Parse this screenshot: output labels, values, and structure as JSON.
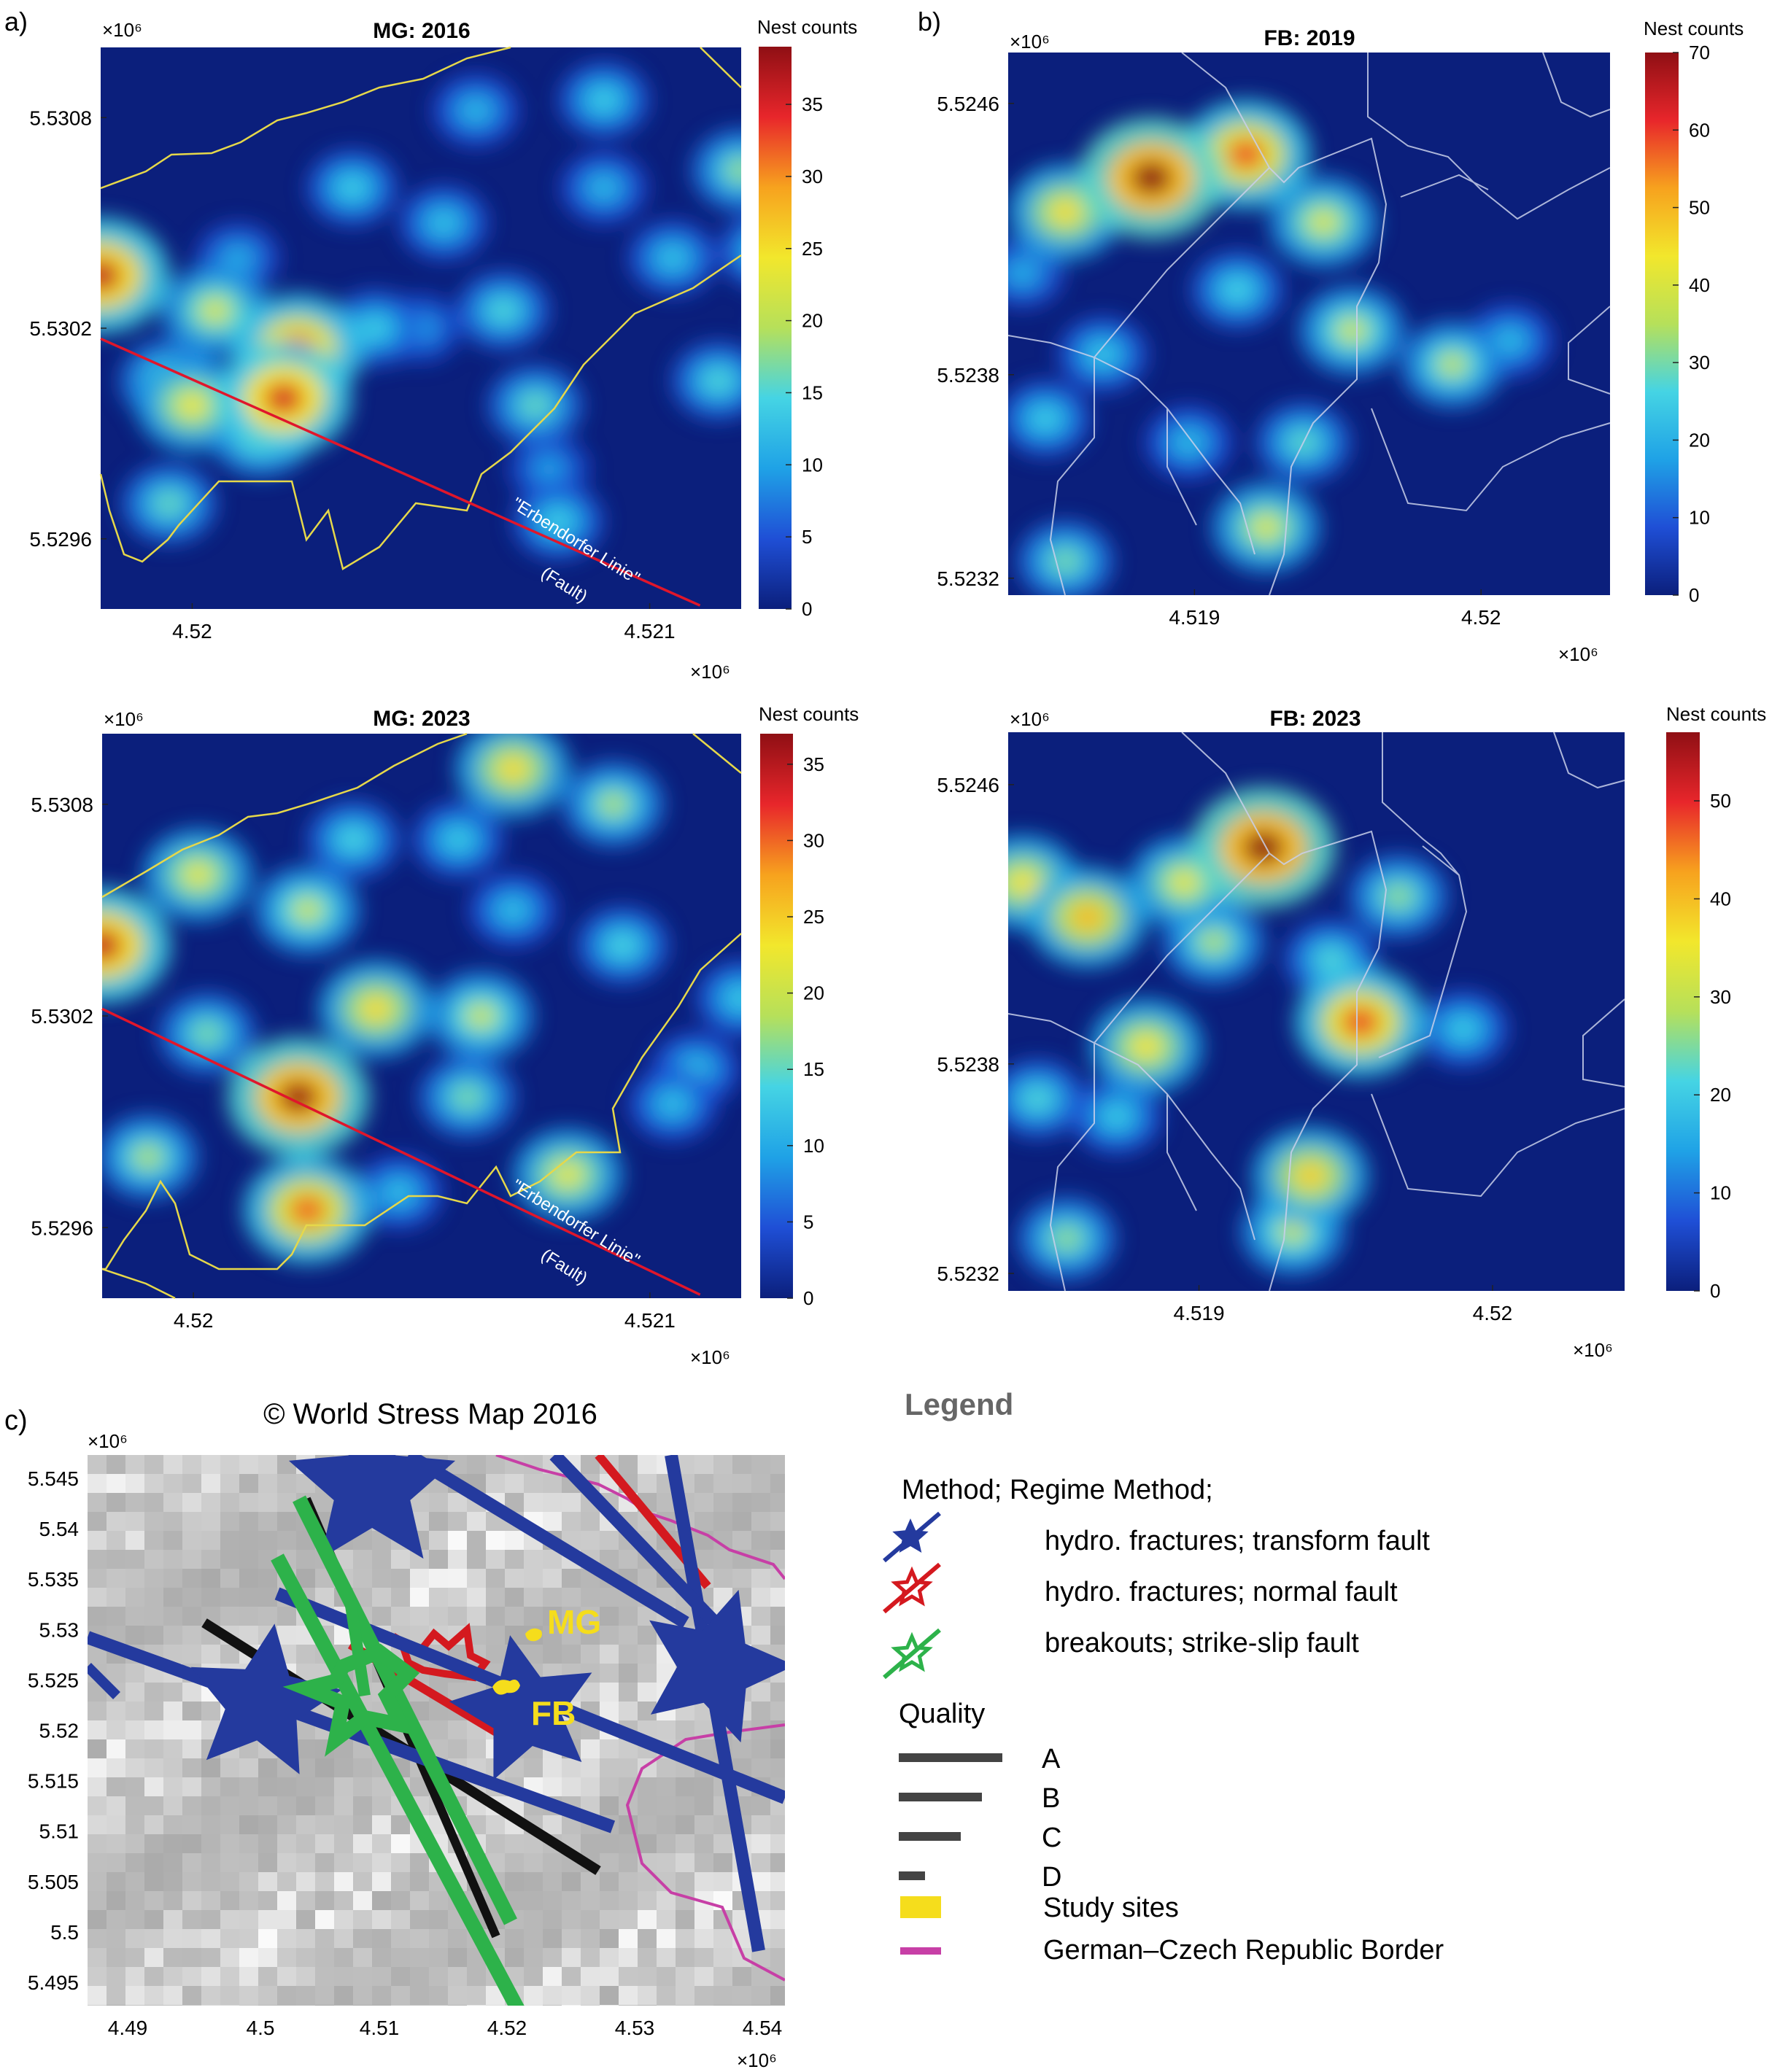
{
  "panel_labels": {
    "a": "a)",
    "b": "b)",
    "c": "c)"
  },
  "colormap": [
    "#0b1f7c",
    "#1f4fd6",
    "#1fa2e6",
    "#45d4e4",
    "#b6e05a",
    "#f2e72c",
    "#f7a21e",
    "#e8262b",
    "#8f0f14"
  ],
  "colors": {
    "boundary_mg": "#e6d84a",
    "boundary_fb": "#c9d0ea",
    "fault": "#e0162b",
    "blue": "#243a9e",
    "red": "#d4191f",
    "green": "#2db24a",
    "yellow": "#f5dd1c",
    "border": "#c73fa6"
  },
  "chart_data": [
    {
      "id": "mg2016",
      "type": "heatmap",
      "title": "MG: 2016",
      "colorbar_label": "Nest counts",
      "cbar_ticks": [
        0,
        5,
        10,
        15,
        20,
        25,
        30,
        35
      ],
      "cbar_max": 39,
      "x_range": [
        4.5198,
        4.5212
      ],
      "y_range": [
        5.5294,
        5.531
      ],
      "x_ticks": [
        {
          "v": 4.52,
          "l": "4.52"
        },
        {
          "v": 4.521,
          "l": "4.521"
        }
      ],
      "y_ticks": [
        {
          "v": 5.5308,
          "l": "5.5308"
        },
        {
          "v": 5.5302,
          "l": "5.5302"
        },
        {
          "v": 5.5296,
          "l": "5.5296"
        }
      ],
      "x_exponent": "×10⁶",
      "y_exponent": "×10⁶",
      "fault_line": [
        [
          4.5198,
          5.53017
        ],
        [
          4.52111,
          5.52941
        ]
      ],
      "fault_label_1": "\"Erbendorfer Linie\"",
      "fault_label_2": "(Fault)",
      "hotspots": [
        [
          4.5198,
          5.53035,
          36
        ],
        [
          4.52023,
          5.53014,
          33
        ],
        [
          4.5202,
          5.53,
          35
        ],
        [
          4.52,
          5.52998,
          24
        ],
        [
          4.52005,
          5.53025,
          22
        ],
        [
          4.51995,
          5.53005,
          18
        ],
        [
          4.51995,
          5.5297,
          16
        ],
        [
          4.52015,
          5.5299,
          20
        ],
        [
          4.52035,
          5.5306,
          14
        ],
        [
          4.5204,
          5.5302,
          14
        ],
        [
          4.52068,
          5.53025,
          15
        ],
        [
          4.52055,
          5.5305,
          13
        ],
        [
          4.5209,
          5.5306,
          12
        ],
        [
          4.5209,
          5.53085,
          14
        ],
        [
          4.5212,
          5.53065,
          18
        ],
        [
          4.52125,
          5.53042,
          14
        ],
        [
          4.52105,
          5.5304,
          13
        ],
        [
          4.52133,
          5.5302,
          13
        ],
        [
          4.52115,
          5.53005,
          15
        ],
        [
          4.52075,
          5.52998,
          16
        ],
        [
          4.52078,
          5.5298,
          10
        ],
        [
          4.5208,
          5.52965,
          14
        ],
        [
          4.5205,
          5.5302,
          10
        ],
        [
          4.52062,
          5.53082,
          12
        ],
        [
          4.5201,
          5.5304,
          11
        ]
      ]
    },
    {
      "id": "mg2023",
      "type": "heatmap",
      "title": "MG: 2023",
      "colorbar_label": "Nest counts",
      "cbar_ticks": [
        0,
        5,
        10,
        15,
        20,
        25,
        30,
        35
      ],
      "cbar_max": 37,
      "x_range": [
        4.5198,
        4.5212
      ],
      "y_range": [
        5.5294,
        5.531
      ],
      "x_ticks": [
        {
          "v": 4.52,
          "l": "4.52"
        },
        {
          "v": 4.521,
          "l": "4.521"
        }
      ],
      "y_ticks": [
        {
          "v": 5.5308,
          "l": "5.5308"
        },
        {
          "v": 5.5302,
          "l": "5.5302"
        },
        {
          "v": 5.5296,
          "l": "5.5296"
        }
      ],
      "x_exponent": "×10⁶",
      "y_exponent": "×10⁶",
      "fault_line": [
        [
          4.5198,
          5.53022
        ],
        [
          4.52111,
          5.52941
        ]
      ],
      "fault_label_1": "\"Erbendorfer Linie\"",
      "fault_label_2": "(Fault)",
      "hotspots": [
        [
          4.5198,
          5.5304,
          34
        ],
        [
          4.52023,
          5.52997,
          36
        ],
        [
          4.52001,
          5.5306,
          22
        ],
        [
          4.52025,
          5.5305,
          20
        ],
        [
          4.5207,
          5.5309,
          24
        ],
        [
          4.52092,
          5.5308,
          18
        ],
        [
          4.5204,
          5.53022,
          24
        ],
        [
          4.52063,
          5.5302,
          20
        ],
        [
          4.5206,
          5.52997,
          16
        ],
        [
          4.52025,
          5.52965,
          30
        ],
        [
          4.5199,
          5.5298,
          18
        ],
        [
          4.52003,
          5.53015,
          16
        ],
        [
          4.52082,
          5.52975,
          22
        ],
        [
          4.52094,
          5.5304,
          14
        ],
        [
          4.52035,
          5.5307,
          14
        ],
        [
          4.52058,
          5.5307,
          13
        ],
        [
          4.5212,
          5.53025,
          13
        ],
        [
          4.5211,
          5.53005,
          12
        ],
        [
          4.5207,
          5.5305,
          12
        ],
        [
          4.52105,
          5.52995,
          12
        ],
        [
          4.52045,
          5.5297,
          12
        ]
      ]
    },
    {
      "id": "fb2019",
      "type": "heatmap",
      "title": "FB: 2019",
      "colorbar_label": "Nest counts",
      "cbar_ticks": [
        0,
        10,
        20,
        30,
        40,
        50,
        60,
        70
      ],
      "cbar_max": 70,
      "x_range": [
        4.51835,
        4.52045
      ],
      "y_range": [
        5.52315,
        5.52475
      ],
      "x_ticks": [
        {
          "v": 4.519,
          "l": "4.519"
        },
        {
          "v": 4.52,
          "l": "4.52"
        }
      ],
      "y_ticks": [
        {
          "v": 5.5246,
          "l": "5.5246"
        },
        {
          "v": 5.5238,
          "l": "5.5238"
        },
        {
          "v": 5.5232,
          "l": "5.5232"
        }
      ],
      "x_exponent": "×10⁶",
      "y_exponent": "×10⁶",
      "hotspots": [
        [
          4.51885,
          5.52438,
          70
        ],
        [
          4.51918,
          5.52445,
          58
        ],
        [
          4.51855,
          5.52428,
          45
        ],
        [
          4.51945,
          5.52425,
          40
        ],
        [
          4.51955,
          5.52393,
          38
        ],
        [
          4.51925,
          5.52335,
          40
        ],
        [
          4.51938,
          5.5236,
          28
        ],
        [
          4.51855,
          5.52325,
          30
        ],
        [
          4.51848,
          5.52367,
          25
        ],
        [
          4.51868,
          5.52386,
          24
        ],
        [
          4.5199,
          5.52383,
          36
        ],
        [
          4.51915,
          5.52405,
          26
        ],
        [
          4.5201,
          5.5239,
          22
        ],
        [
          4.5184,
          5.5241,
          20
        ],
        [
          4.51898,
          5.5236,
          22
        ]
      ]
    },
    {
      "id": "fb2023",
      "type": "heatmap",
      "title": "FB: 2023",
      "colorbar_label": "Nest counts",
      "cbar_ticks": [
        0,
        10,
        20,
        30,
        40,
        50
      ],
      "cbar_max": 57,
      "x_range": [
        4.51835,
        4.52045
      ],
      "y_range": [
        5.52315,
        5.52475
      ],
      "x_ticks": [
        {
          "v": 4.519,
          "l": "4.519"
        },
        {
          "v": 4.52,
          "l": "4.52"
        }
      ],
      "y_ticks": [
        {
          "v": 5.5246,
          "l": "5.5246"
        },
        {
          "v": 5.5238,
          "l": "5.5238"
        },
        {
          "v": 5.5232,
          "l": "5.5232"
        }
      ],
      "x_exponent": "×10⁶",
      "y_exponent": "×10⁶",
      "hotspots": [
        [
          4.51922,
          5.52442,
          57
        ],
        [
          4.51862,
          5.52422,
          40
        ],
        [
          4.5184,
          5.52432,
          36
        ],
        [
          4.51895,
          5.52432,
          34
        ],
        [
          4.51955,
          5.52392,
          48
        ],
        [
          4.51882,
          5.52385,
          36
        ],
        [
          4.51938,
          5.52348,
          38
        ],
        [
          4.51932,
          5.52332,
          30
        ],
        [
          4.51855,
          5.5233,
          26
        ],
        [
          4.51905,
          5.52415,
          28
        ],
        [
          4.51968,
          5.52428,
          26
        ],
        [
          4.5199,
          5.5239,
          20
        ],
        [
          4.51845,
          5.5237,
          22
        ],
        [
          4.51872,
          5.52365,
          20
        ],
        [
          4.51945,
          5.5241,
          22
        ]
      ]
    },
    {
      "id": "wsm",
      "type": "map",
      "title": "© World Stress Map 2016",
      "x_ticks": [
        "4.49",
        "4.5",
        "4.51",
        "4.52",
        "4.53",
        "4.54"
      ],
      "y_ticks": [
        "5.545",
        "5.54",
        "5.535",
        "5.53",
        "5.525",
        "5.52",
        "5.515",
        "5.51",
        "5.505",
        "5.5",
        "5.495"
      ],
      "x_exponent": "×10⁶",
      "y_exponent": "×10⁶",
      "site_labels": [
        "MG",
        "FB"
      ]
    }
  ],
  "legend": {
    "title": "Legend",
    "method_header": "Method; Regime Method;",
    "methods": [
      {
        "icon": "blue-star-icon",
        "label": "hydro. fractures; transform fault"
      },
      {
        "icon": "red-star-icon",
        "label": "hydro. fractures; normal fault"
      },
      {
        "icon": "green-star-icon",
        "label": "breakouts; strike-slip fault"
      }
    ],
    "quality_header": "Quality",
    "quality": [
      {
        "label": "A",
        "bar": 1.0
      },
      {
        "label": "B",
        "bar": 0.8
      },
      {
        "label": "C",
        "bar": 0.6
      },
      {
        "label": "D",
        "bar": 0.25
      }
    ],
    "study_sites": "Study sites",
    "border": "German–Czech Republic Border"
  }
}
